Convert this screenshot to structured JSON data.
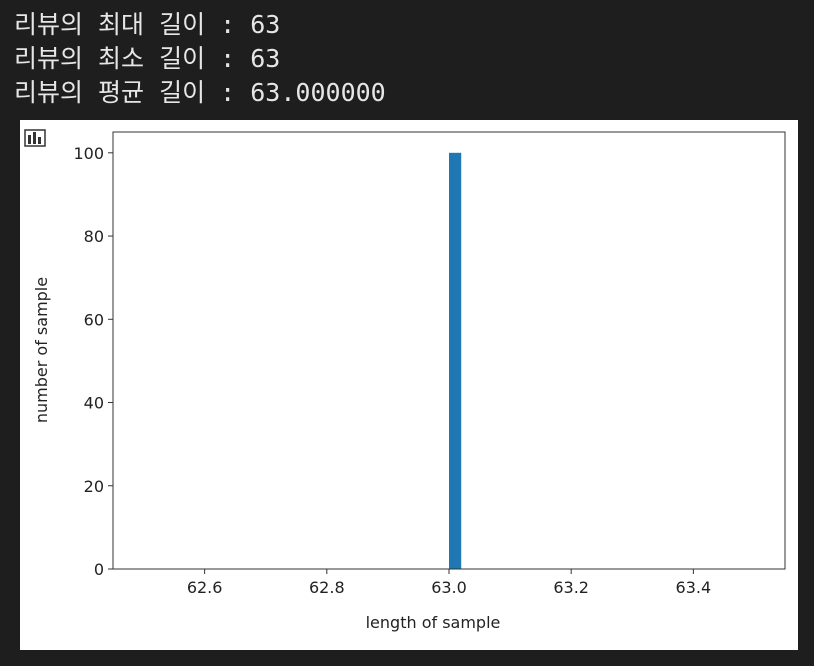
{
  "console_lines": [
    "리뷰의 최대 길이 : 63",
    "리뷰의 최소 길이 : 63",
    "리뷰의 평균 길이 : 63.000000"
  ],
  "chart_data": {
    "type": "histogram",
    "xlabel": "length of sample",
    "ylabel": "number of sample",
    "color": "#1f77b4",
    "bins": [
      62.5,
      62.52,
      62.54,
      62.56,
      62.58,
      62.6,
      62.62,
      62.64,
      62.66,
      62.68,
      62.7,
      62.72,
      62.74,
      62.76,
      62.78,
      62.8,
      62.82,
      62.84,
      62.86,
      62.88,
      62.9,
      62.92,
      62.94,
      62.96,
      62.98,
      63.0,
      63.02,
      63.04,
      63.06,
      63.08,
      63.1,
      63.12,
      63.14,
      63.16,
      63.18,
      63.2,
      63.22,
      63.24,
      63.26,
      63.28,
      63.3,
      63.32,
      63.34,
      63.36,
      63.38,
      63.4,
      63.42,
      63.44,
      63.46,
      63.48,
      63.5
    ],
    "values": [
      0,
      0,
      0,
      0,
      0,
      0,
      0,
      0,
      0,
      0,
      0,
      0,
      0,
      0,
      0,
      0,
      0,
      0,
      0,
      0,
      0,
      0,
      0,
      0,
      0,
      100,
      0,
      0,
      0,
      0,
      0,
      0,
      0,
      0,
      0,
      0,
      0,
      0,
      0,
      0,
      0,
      0,
      0,
      0,
      0,
      0,
      0,
      0,
      0,
      0
    ],
    "xlim": [
      62.45,
      63.55
    ],
    "ylim": [
      0,
      105
    ],
    "xticks": [
      62.6,
      62.8,
      {
        "value": 63.0,
        "label": "63.0"
      },
      63.2,
      63.4
    ],
    "yticks": [
      0,
      20,
      40,
      60,
      80,
      100
    ]
  }
}
